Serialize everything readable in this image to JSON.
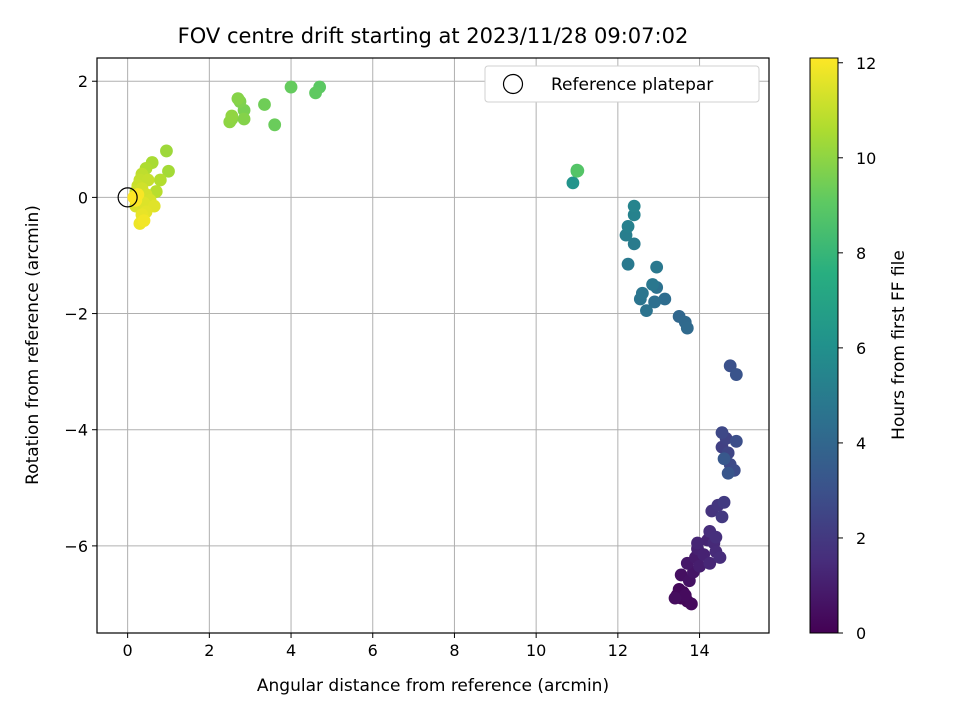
{
  "chart_data": {
    "type": "scatter",
    "title": "FOV centre drift starting at 2023/11/28 09:07:02",
    "xlabel": "Angular distance from reference (arcmin)",
    "ylabel": "Rotation from reference (arcmin)",
    "xlim": [
      -0.75,
      15.7
    ],
    "ylim": [
      -7.5,
      2.4
    ],
    "xticks": [
      0,
      2,
      4,
      6,
      8,
      10,
      12,
      14
    ],
    "yticks": [
      2,
      0,
      -2,
      -4,
      -6
    ],
    "xtick_labels": [
      "0",
      "2",
      "4",
      "6",
      "8",
      "10",
      "12",
      "14"
    ],
    "ytick_labels": [
      "2",
      "0",
      "−2",
      "−4",
      "−6"
    ],
    "grid": true,
    "legend": {
      "placement": "top-right",
      "entries": [
        {
          "label": "Reference platepar",
          "marker": "open-circle",
          "x": 0,
          "y": 0
        }
      ]
    },
    "colorbar": {
      "label": "Hours from first FF file",
      "colormap": "viridis",
      "range": [
        0,
        12.1
      ],
      "ticks": [
        0,
        2,
        4,
        6,
        8,
        10,
        12
      ],
      "tick_labels": [
        "0",
        "2",
        "4",
        "6",
        "8",
        "10",
        "12"
      ]
    },
    "points": [
      {
        "x": 13.45,
        "y": -6.85,
        "c": 0.05
      },
      {
        "x": 13.55,
        "y": -6.9,
        "c": 0.1
      },
      {
        "x": 13.6,
        "y": -6.8,
        "c": 0.15
      },
      {
        "x": 13.7,
        "y": -6.95,
        "c": 0.2
      },
      {
        "x": 13.5,
        "y": -6.75,
        "c": 0.25
      },
      {
        "x": 13.8,
        "y": -7.0,
        "c": 0.3
      },
      {
        "x": 13.65,
        "y": -6.85,
        "c": 0.35
      },
      {
        "x": 13.4,
        "y": -6.9,
        "c": 0.4
      },
      {
        "x": 13.55,
        "y": -6.5,
        "c": 0.5
      },
      {
        "x": 13.75,
        "y": -6.6,
        "c": 0.6
      },
      {
        "x": 13.85,
        "y": -6.45,
        "c": 0.7
      },
      {
        "x": 13.7,
        "y": -6.3,
        "c": 0.8
      },
      {
        "x": 13.9,
        "y": -6.2,
        "c": 0.9
      },
      {
        "x": 14.0,
        "y": -6.35,
        "c": 1.0
      },
      {
        "x": 13.95,
        "y": -6.05,
        "c": 1.1
      },
      {
        "x": 14.1,
        "y": -6.15,
        "c": 1.15
      },
      {
        "x": 14.2,
        "y": -5.9,
        "c": 1.2
      },
      {
        "x": 13.95,
        "y": -5.95,
        "c": 1.25
      },
      {
        "x": 14.25,
        "y": -6.3,
        "c": 1.3
      },
      {
        "x": 14.35,
        "y": -5.95,
        "c": 1.4
      },
      {
        "x": 14.4,
        "y": -6.1,
        "c": 1.45
      },
      {
        "x": 14.5,
        "y": -6.2,
        "c": 1.5
      },
      {
        "x": 14.25,
        "y": -5.75,
        "c": 1.55
      },
      {
        "x": 14.4,
        "y": -5.85,
        "c": 1.6
      },
      {
        "x": 14.3,
        "y": -5.4,
        "c": 1.8
      },
      {
        "x": 14.45,
        "y": -5.3,
        "c": 1.9
      },
      {
        "x": 14.55,
        "y": -5.5,
        "c": 2.0
      },
      {
        "x": 14.6,
        "y": -5.25,
        "c": 2.1
      },
      {
        "x": 14.55,
        "y": -4.3,
        "c": 2.3
      },
      {
        "x": 14.65,
        "y": -4.15,
        "c": 2.4
      },
      {
        "x": 14.7,
        "y": -4.4,
        "c": 2.5
      },
      {
        "x": 14.55,
        "y": -4.05,
        "c": 2.6
      },
      {
        "x": 14.75,
        "y": -4.6,
        "c": 2.7
      },
      {
        "x": 14.85,
        "y": -4.7,
        "c": 2.8
      },
      {
        "x": 14.9,
        "y": -4.2,
        "c": 2.9
      },
      {
        "x": 14.75,
        "y": -2.9,
        "c": 3.0
      },
      {
        "x": 14.9,
        "y": -3.05,
        "c": 3.1
      },
      {
        "x": 14.7,
        "y": -4.75,
        "c": 3.2
      },
      {
        "x": 14.6,
        "y": -4.5,
        "c": 3.3
      },
      {
        "x": 13.5,
        "y": -2.05,
        "c": 4.0
      },
      {
        "x": 13.65,
        "y": -2.15,
        "c": 4.1
      },
      {
        "x": 13.7,
        "y": -2.25,
        "c": 4.15
      },
      {
        "x": 13.15,
        "y": -1.75,
        "c": 4.3
      },
      {
        "x": 12.9,
        "y": -1.8,
        "c": 4.4
      },
      {
        "x": 12.95,
        "y": -1.55,
        "c": 4.5
      },
      {
        "x": 12.7,
        "y": -1.95,
        "c": 4.6
      },
      {
        "x": 12.55,
        "y": -1.75,
        "c": 4.65
      },
      {
        "x": 12.6,
        "y": -1.65,
        "c": 4.7
      },
      {
        "x": 12.85,
        "y": -1.5,
        "c": 4.8
      },
      {
        "x": 12.95,
        "y": -1.2,
        "c": 4.85
      },
      {
        "x": 12.25,
        "y": -1.15,
        "c": 4.9
      },
      {
        "x": 12.4,
        "y": -0.8,
        "c": 5.0
      },
      {
        "x": 12.2,
        "y": -0.65,
        "c": 5.1
      },
      {
        "x": 12.25,
        "y": -0.5,
        "c": 5.2
      },
      {
        "x": 12.4,
        "y": -0.3,
        "c": 5.3
      },
      {
        "x": 12.4,
        "y": -0.15,
        "c": 5.4
      },
      {
        "x": 10.9,
        "y": 0.25,
        "c": 6.2
      },
      {
        "x": 11.0,
        "y": 0.45,
        "c": 8.6
      },
      {
        "x": 11.0,
        "y": 0.47,
        "c": 8.7
      },
      {
        "x": 11.02,
        "y": 0.46,
        "c": 8.8
      },
      {
        "x": 4.7,
        "y": 1.9,
        "c": 9.0
      },
      {
        "x": 4.6,
        "y": 1.8,
        "c": 9.1
      },
      {
        "x": 4.0,
        "y": 1.9,
        "c": 9.2
      },
      {
        "x": 3.6,
        "y": 1.25,
        "c": 9.3
      },
      {
        "x": 3.35,
        "y": 1.6,
        "c": 9.4
      },
      {
        "x": 2.85,
        "y": 1.5,
        "c": 9.6
      },
      {
        "x": 2.75,
        "y": 1.65,
        "c": 9.7
      },
      {
        "x": 2.85,
        "y": 1.35,
        "c": 9.8
      },
      {
        "x": 2.7,
        "y": 1.7,
        "c": 9.85
      },
      {
        "x": 2.55,
        "y": 1.35,
        "c": 9.9
      },
      {
        "x": 2.5,
        "y": 1.3,
        "c": 10.0
      },
      {
        "x": 2.55,
        "y": 1.4,
        "c": 10.05
      },
      {
        "x": 0.95,
        "y": 0.8,
        "c": 10.3
      },
      {
        "x": 1.0,
        "y": 0.45,
        "c": 10.4
      },
      {
        "x": 0.6,
        "y": 0.6,
        "c": 10.5
      },
      {
        "x": 0.45,
        "y": 0.5,
        "c": 10.6
      },
      {
        "x": 0.8,
        "y": 0.3,
        "c": 10.7
      },
      {
        "x": 0.7,
        "y": 0.1,
        "c": 10.8
      },
      {
        "x": 0.35,
        "y": 0.4,
        "c": 10.9
      },
      {
        "x": 0.3,
        "y": 0.3,
        "c": 11.0
      },
      {
        "x": 0.5,
        "y": 0.3,
        "c": 11.05
      },
      {
        "x": 0.25,
        "y": 0.2,
        "c": 11.1
      },
      {
        "x": 0.2,
        "y": 0.1,
        "c": 11.2
      },
      {
        "x": 0.35,
        "y": 0.15,
        "c": 11.25
      },
      {
        "x": 0.45,
        "y": 0.05,
        "c": 11.3
      },
      {
        "x": 0.55,
        "y": -0.05,
        "c": 11.35
      },
      {
        "x": 0.3,
        "y": -0.05,
        "c": 11.4
      },
      {
        "x": 0.2,
        "y": -0.15,
        "c": 11.45
      },
      {
        "x": 0.4,
        "y": -0.1,
        "c": 11.5
      },
      {
        "x": 0.65,
        "y": -0.15,
        "c": 11.55
      },
      {
        "x": 0.45,
        "y": -0.25,
        "c": 11.6
      },
      {
        "x": 0.35,
        "y": -0.3,
        "c": 11.7
      },
      {
        "x": 0.3,
        "y": -0.45,
        "c": 11.8
      },
      {
        "x": 0.4,
        "y": -0.4,
        "c": 11.9
      },
      {
        "x": 0.25,
        "y": 0.05,
        "c": 12.0
      },
      {
        "x": 0.2,
        "y": -0.05,
        "c": 12.05
      },
      {
        "x": 0.15,
        "y": 0.0,
        "c": 12.1
      }
    ]
  }
}
